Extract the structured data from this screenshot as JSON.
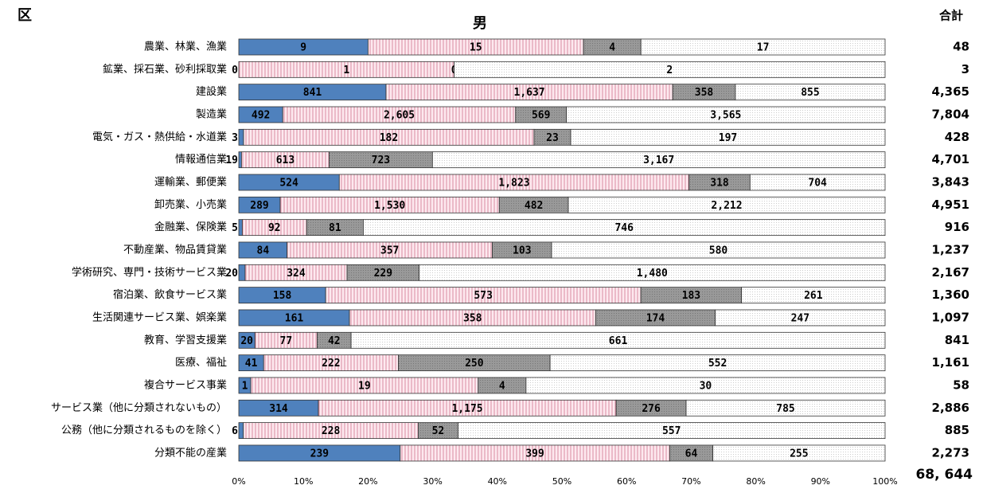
{
  "chart_data": {
    "type": "bar",
    "orientation": "horizontal",
    "stack": "percent",
    "title": "男",
    "row_header": "区",
    "total_header": "合計",
    "categories": [
      "農業、林業、漁業",
      "鉱業、採石業、砂利採取業",
      "建設業",
      "製造業",
      "電気・ガス・熱供給・水道業",
      "情報通信業",
      "運輸業、郵便業",
      "卸売業、小売業",
      "金融業、保険業",
      "不動産業、物品賃貸業",
      "学術研究、専門・技術サービス業",
      "宿泊業、飲食サービス業",
      "生活関連サービス業、娯楽業",
      "教育、学習支援業",
      "医療、福祉",
      "複合サービス事業",
      "サービス業（他に分類されないもの）",
      "公務（他に分類されるものを除く）",
      "分類不能の産業"
    ],
    "series": [
      {
        "color": "#4f81bd",
        "values": [
          9,
          0,
          841,
          492,
          3,
          19,
          524,
          289,
          5,
          84,
          20,
          158,
          161,
          20,
          41,
          1,
          314,
          6,
          239
        ],
        "value_labels": [
          "9",
          "0",
          "841",
          "492",
          "3",
          "19",
          "524",
          "289",
          "5",
          "84",
          "20",
          "158",
          "161",
          "20",
          "41",
          "1",
          "314",
          "6",
          "239"
        ]
      },
      {
        "color": "#f2c9d4",
        "values": [
          15,
          1,
          1637,
          2605,
          182,
          613,
          1823,
          1530,
          92,
          357,
          324,
          573,
          358,
          77,
          222,
          19,
          1175,
          228,
          399
        ],
        "value_labels": [
          "15",
          "1",
          "1,637",
          "2,605",
          "182",
          "613",
          "1,823",
          "1,530",
          "92",
          "357",
          "324",
          "573",
          "358",
          "77",
          "222",
          "19",
          "1,175",
          "228",
          "399"
        ]
      },
      {
        "color": "#969696",
        "values": [
          4,
          0,
          358,
          569,
          23,
          723,
          318,
          482,
          81,
          103,
          229,
          183,
          174,
          42,
          250,
          4,
          276,
          52,
          64
        ],
        "value_labels": [
          "4",
          "0",
          "358",
          "569",
          "23",
          "723",
          "318",
          "482",
          "81",
          "103",
          "229",
          "183",
          "174",
          "42",
          "250",
          "4",
          "276",
          "52",
          "64"
        ]
      },
      {
        "color": "#ffffff",
        "values": [
          17,
          2,
          855,
          3565,
          197,
          3167,
          704,
          2212,
          746,
          580,
          1480,
          261,
          247,
          661,
          552,
          30,
          785,
          557,
          255
        ],
        "value_labels": [
          "17",
          "2",
          "855",
          "3,565",
          "197",
          "3,167",
          "704",
          "2,212",
          "746",
          "580",
          "1,480",
          "261",
          "247",
          "661",
          "552",
          "30",
          "785",
          "557",
          "255"
        ]
      }
    ],
    "totals": [
      48,
      3,
      4365,
      7804,
      428,
      4701,
      3843,
      4951,
      916,
      1237,
      2167,
      1360,
      1097,
      841,
      1161,
      58,
      2886,
      885,
      2273
    ],
    "total_labels": [
      "48",
      "3",
      "4,365",
      "7,804",
      "428",
      "4,701",
      "3,843",
      "4,951",
      "916",
      "1,237",
      "2,167",
      "1,360",
      "1,097",
      "841",
      "1,161",
      "58",
      "2,886",
      "885",
      "2,273"
    ],
    "grand_total": {
      "value": 68644,
      "label": "68, 644"
    },
    "xlim": [
      0,
      100
    ],
    "xticks": [
      {
        "value": 0,
        "label": "0%"
      },
      {
        "value": 10,
        "label": "10%"
      },
      {
        "value": 20,
        "label": "20%"
      },
      {
        "value": 30,
        "label": "30%"
      },
      {
        "value": 40,
        "label": "40%"
      },
      {
        "value": 50,
        "label": "50%"
      },
      {
        "value": 60,
        "label": "60%"
      },
      {
        "value": 70,
        "label": "70%"
      },
      {
        "value": 80,
        "label": "80%"
      },
      {
        "value": 90,
        "label": "90%"
      },
      {
        "value": 100,
        "label": "100%"
      }
    ]
  }
}
